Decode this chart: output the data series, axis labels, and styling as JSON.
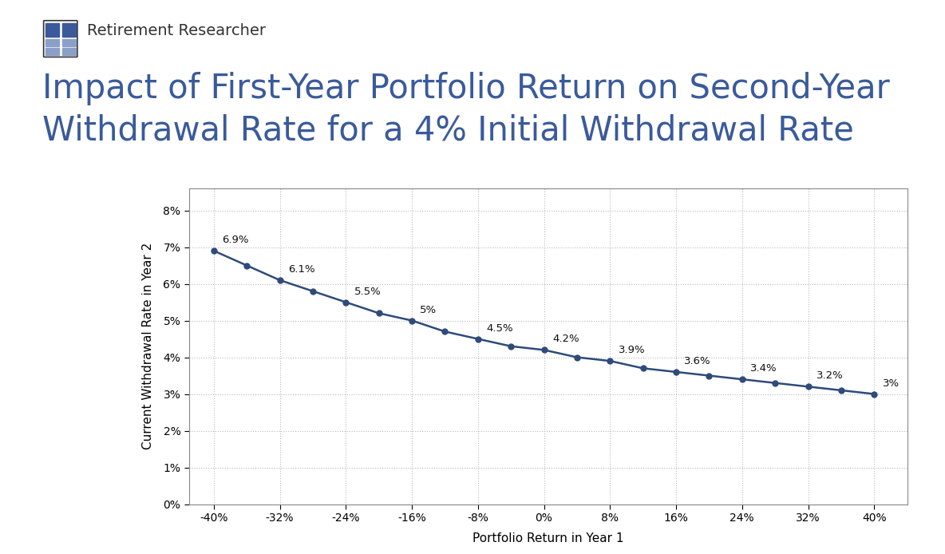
{
  "title_line1": "Impact of First-Year Portfolio Return on Second-Year",
  "title_line2": "Withdrawal Rate for a 4% Initial Withdrawal Rate",
  "title_color": "#3A5A9B",
  "title_fontsize": 30,
  "subtitle": "Retirement Researcher",
  "subtitle_fontsize": 14,
  "subtitle_color": "#333333",
  "xlabel": "Portfolio Return in Year 1",
  "ylabel": "Current Withdrawal Rate in Year 2",
  "x_values": [
    -40,
    -36,
    -32,
    -28,
    -24,
    -20,
    -16,
    -12,
    -8,
    -4,
    0,
    4,
    8,
    12,
    16,
    20,
    24,
    28,
    32,
    36,
    40
  ],
  "y_values": [
    6.9,
    6.5,
    6.1,
    5.8,
    5.5,
    5.2,
    5.0,
    4.7,
    4.5,
    4.3,
    4.2,
    4.0,
    3.9,
    3.7,
    3.6,
    3.5,
    3.4,
    3.3,
    3.2,
    3.1,
    3.0
  ],
  "labeled_x": [
    -40,
    -32,
    -24,
    -16,
    -8,
    0,
    8,
    16,
    24,
    32,
    40
  ],
  "labeled_y": [
    6.9,
    6.1,
    5.5,
    5.0,
    4.5,
    4.2,
    3.9,
    3.6,
    3.4,
    3.2,
    3.0
  ],
  "labeled_text": [
    "6.9%",
    "6.1%",
    "5.5%",
    "5%",
    "4.5%",
    "4.2%",
    "3.9%",
    "3.6%",
    "3.4%",
    "3.2%",
    "3%"
  ],
  "label_offsets_x": [
    1,
    1,
    1,
    1,
    1,
    1,
    1,
    1,
    1,
    1,
    1
  ],
  "label_offsets_y": [
    0.15,
    0.15,
    0.15,
    0.15,
    0.15,
    0.15,
    0.15,
    0.15,
    0.15,
    0.15,
    0.15
  ],
  "line_color": "#2E4B7A",
  "marker_color": "#2E4B7A",
  "marker_size": 5,
  "line_width": 1.8,
  "grid_color": "#BBBBBB",
  "background_color": "#FFFFFF",
  "xlim": [
    -43,
    44
  ],
  "ylim": [
    0,
    8.6
  ],
  "x_tick_positions": [
    -40,
    -32,
    -24,
    -16,
    -8,
    0,
    8,
    16,
    24,
    32,
    40
  ],
  "y_tick_positions": [
    0,
    1,
    2,
    3,
    4,
    5,
    6,
    7,
    8
  ],
  "y_tick_labels": [
    "0%",
    "1%",
    "2%",
    "3%",
    "4%",
    "5%",
    "6%",
    "7%",
    "8%"
  ],
  "x_tick_labels": [
    "-40%",
    "-32%",
    "-24%",
    "-16%",
    "-8%",
    "0%",
    "8%",
    "16%",
    "24%",
    "32%",
    "40%"
  ],
  "icon_color_main": "#3A5A9B",
  "icon_color_light": "#8AA0C8",
  "icon_border": "#333333"
}
